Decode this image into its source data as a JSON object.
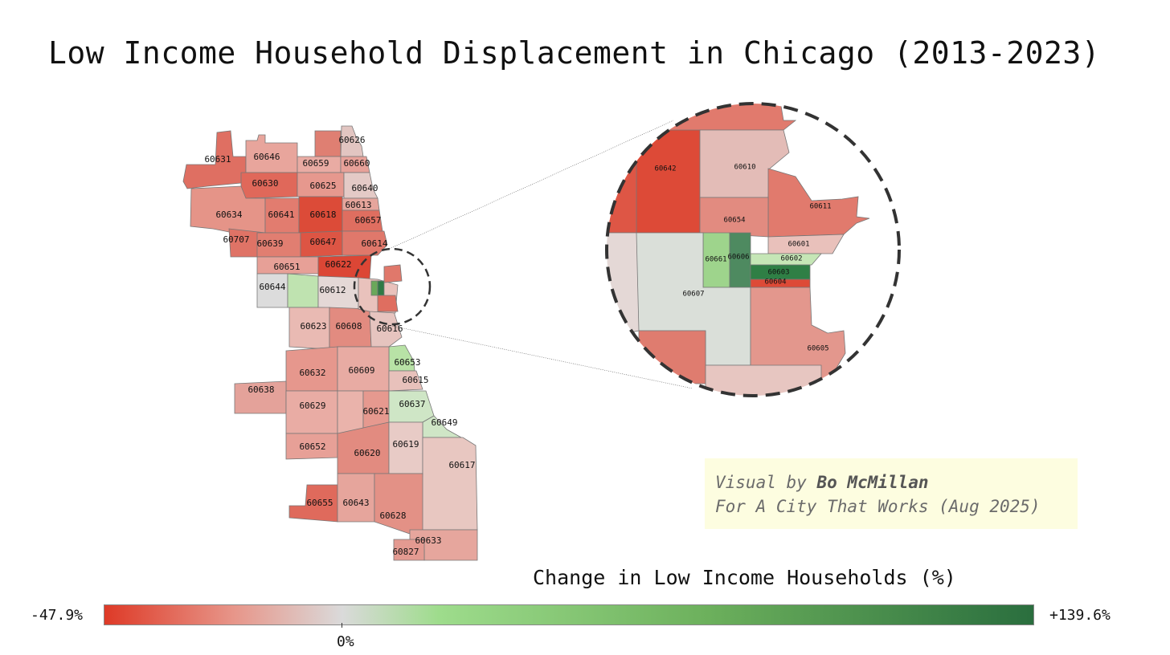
{
  "title": "Low Income Household Displacement in Chicago (2013-2023)",
  "credit": {
    "line1_prefix": "Visual by ",
    "author": "Bo McMillan",
    "line2": "For A City That Works (Aug 2025)"
  },
  "legend": {
    "title": "Change in Low Income Households (%)",
    "min_label": "-47.9%",
    "max_label": "+139.6%",
    "zero_label": "0%",
    "colors": [
      "#de3a27",
      "#e7968a",
      "#dadada",
      "#9edc8c",
      "#6cb05c",
      "#2a6e3e"
    ]
  },
  "zips": [
    {
      "zip": "60631"
    },
    {
      "zip": "60646"
    },
    {
      "zip": "60626"
    },
    {
      "zip": "60659"
    },
    {
      "zip": "60660"
    },
    {
      "zip": "60630"
    },
    {
      "zip": "60625"
    },
    {
      "zip": "60640"
    },
    {
      "zip": "60634"
    },
    {
      "zip": "60641"
    },
    {
      "zip": "60618"
    },
    {
      "zip": "60613"
    },
    {
      "zip": "60657"
    },
    {
      "zip": "60707"
    },
    {
      "zip": "60639"
    },
    {
      "zip": "60647"
    },
    {
      "zip": "60614"
    },
    {
      "zip": "60651"
    },
    {
      "zip": "60622"
    },
    {
      "zip": "60644"
    },
    {
      "zip": "60612"
    },
    {
      "zip": "60623"
    },
    {
      "zip": "60608"
    },
    {
      "zip": "60616"
    },
    {
      "zip": "60653"
    },
    {
      "zip": "60632"
    },
    {
      "zip": "60609"
    },
    {
      "zip": "60615"
    },
    {
      "zip": "60638"
    },
    {
      "zip": "60629"
    },
    {
      "zip": "60621"
    },
    {
      "zip": "60637"
    },
    {
      "zip": "60649"
    },
    {
      "zip": "60652"
    },
    {
      "zip": "60620"
    },
    {
      "zip": "60619"
    },
    {
      "zip": "60617"
    },
    {
      "zip": "60655"
    },
    {
      "zip": "60643"
    },
    {
      "zip": "60628"
    },
    {
      "zip": "60633"
    },
    {
      "zip": "60827"
    }
  ],
  "inset_zips": [
    {
      "zip": "60642"
    },
    {
      "zip": "60610"
    },
    {
      "zip": "60611"
    },
    {
      "zip": "60654"
    },
    {
      "zip": "60601"
    },
    {
      "zip": "60661"
    },
    {
      "zip": "60606"
    },
    {
      "zip": "60602"
    },
    {
      "zip": "60603"
    },
    {
      "zip": "60604"
    },
    {
      "zip": "60607"
    },
    {
      "zip": "60605"
    }
  ]
}
